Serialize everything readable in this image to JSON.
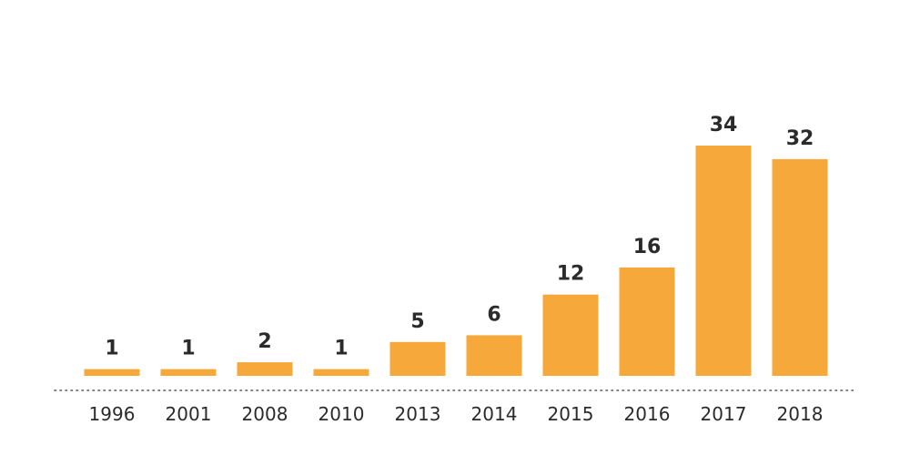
{
  "chart_data": {
    "type": "bar",
    "categories": [
      "1996",
      "2001",
      "2008",
      "2010",
      "2013",
      "2014",
      "2015",
      "2016",
      "2017",
      "2018"
    ],
    "values": [
      1,
      1,
      2,
      1,
      5,
      6,
      12,
      16,
      34,
      32
    ],
    "title": "",
    "xlabel": "",
    "ylabel": "",
    "ylim": [
      0,
      34
    ],
    "grid": false,
    "baseline_style": "dotted",
    "bar_color": "#F6A83A",
    "label_color": "#2b2b2b",
    "data_labels": true
  }
}
